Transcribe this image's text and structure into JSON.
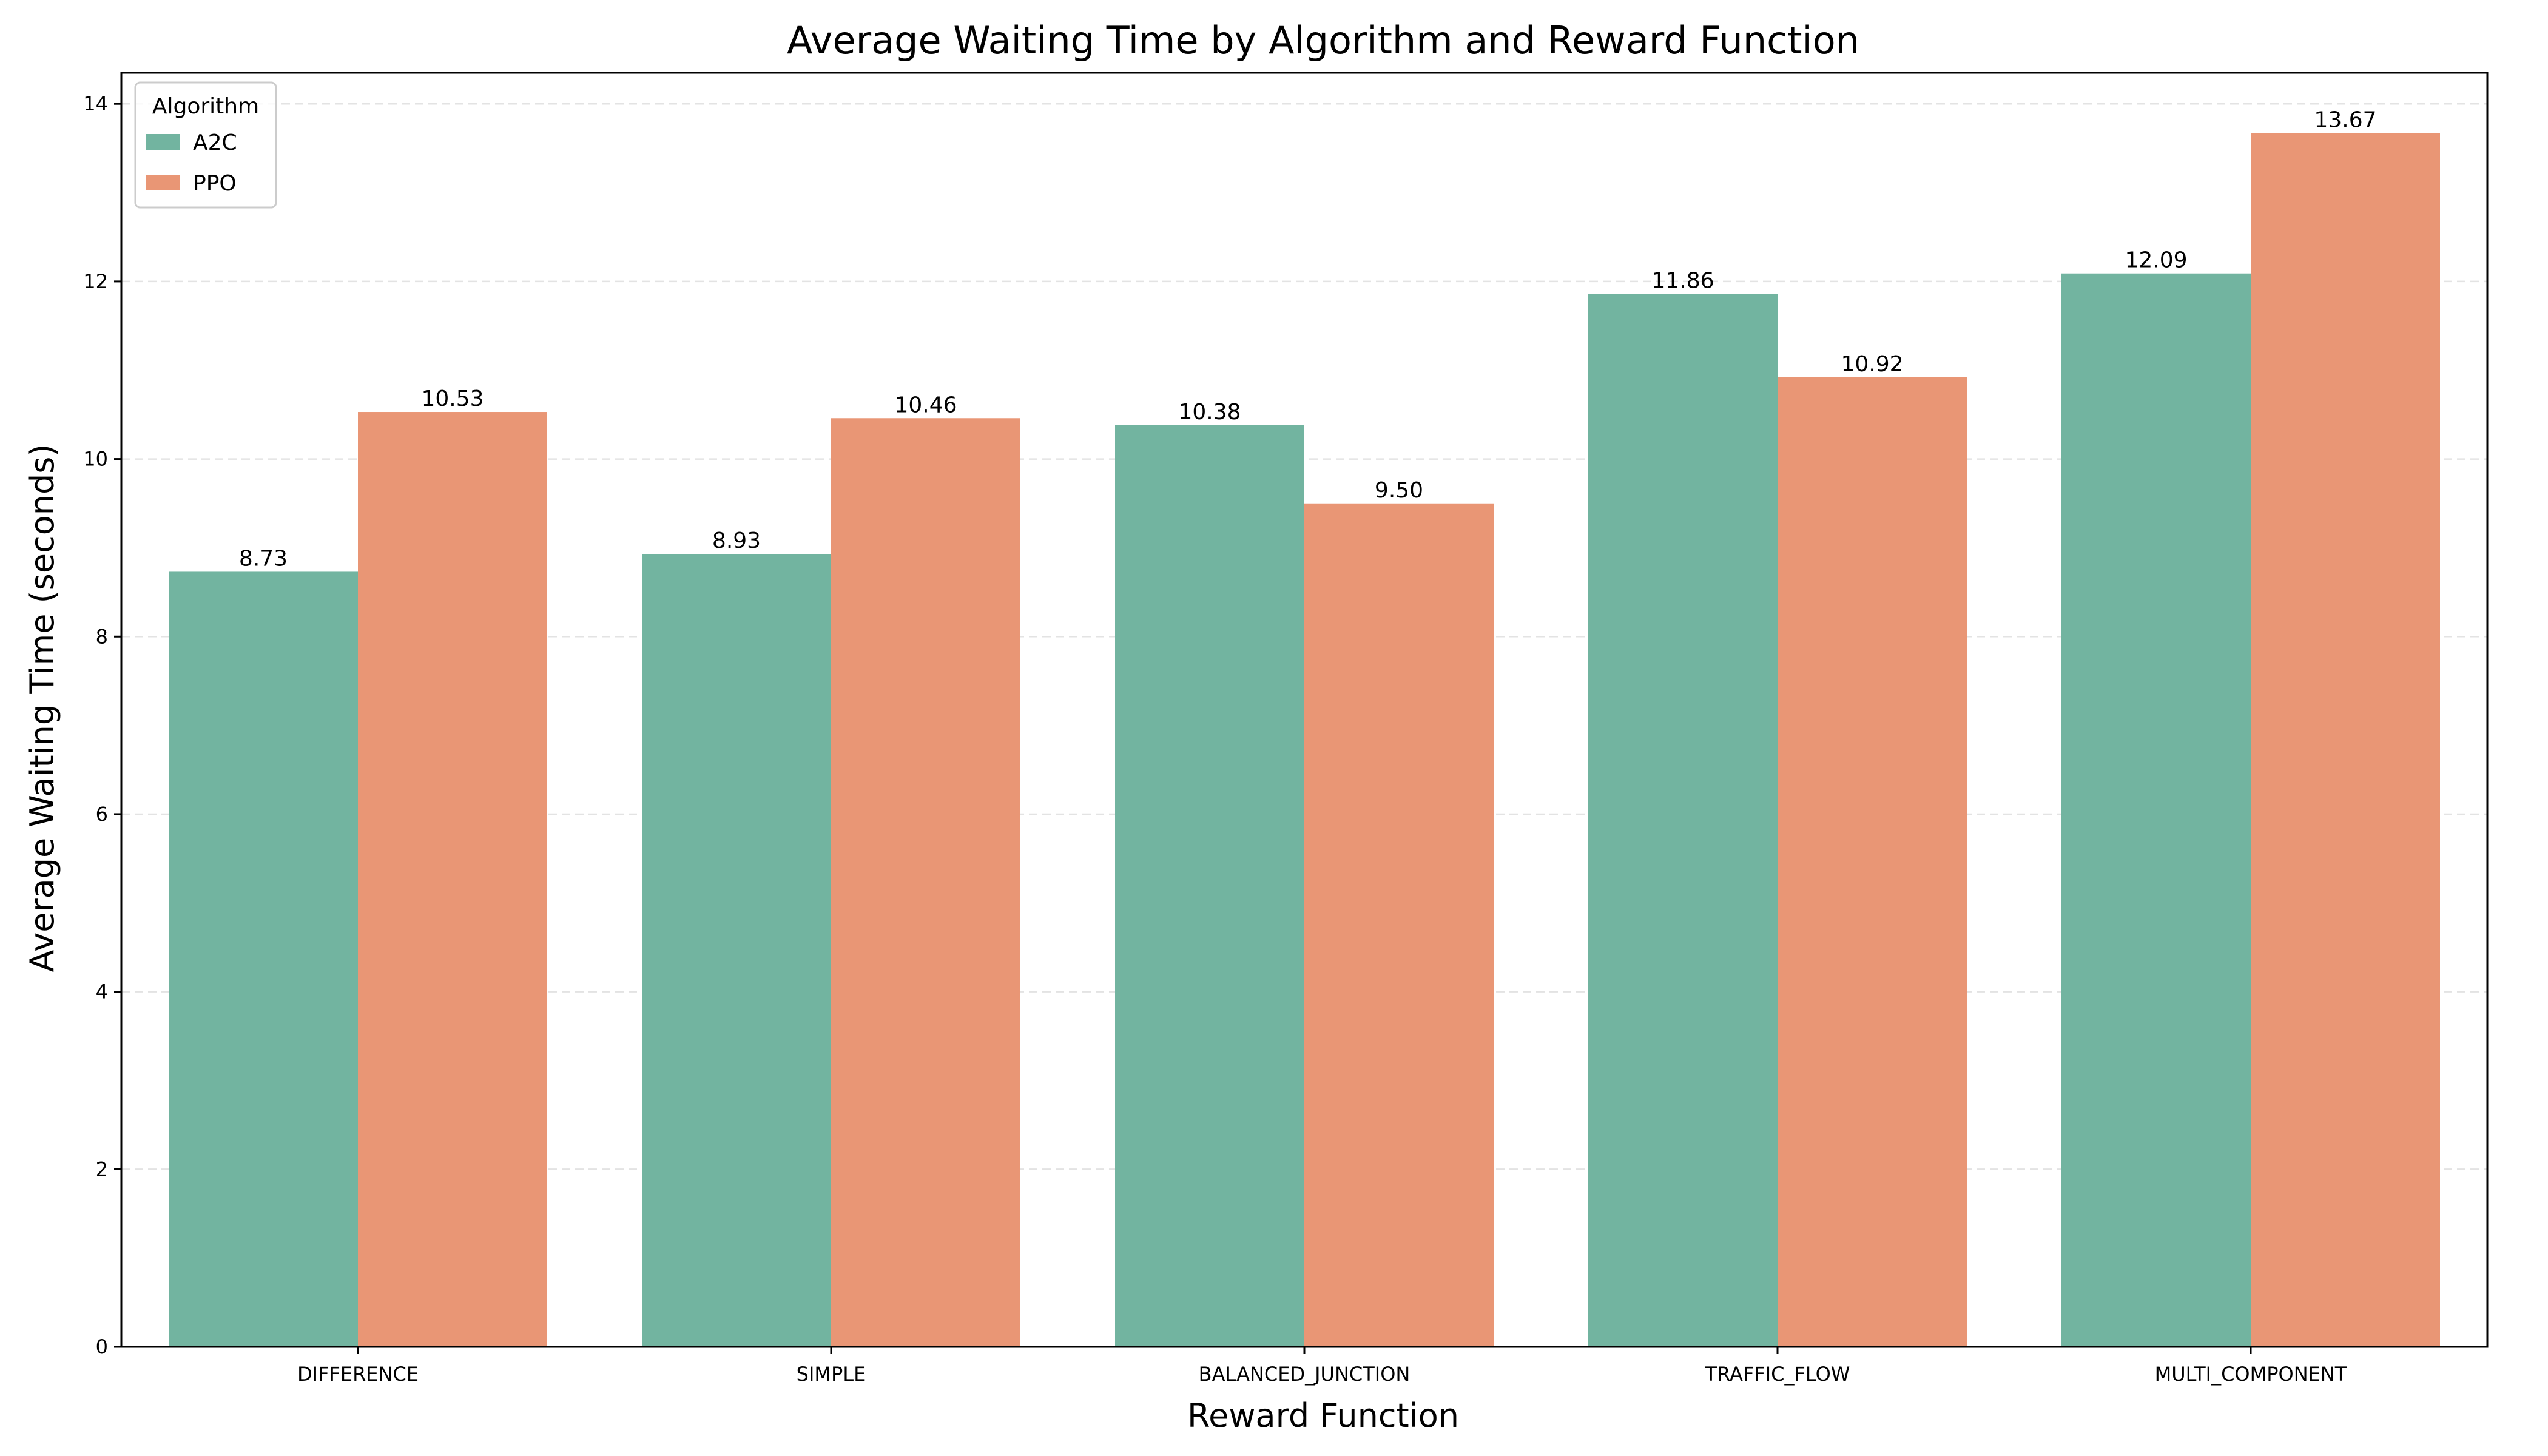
{
  "chart_data": {
    "type": "bar",
    "title": "Average Waiting Time by Algorithm and Reward Function",
    "xlabel": "Reward Function",
    "ylabel": "Average Waiting Time (seconds)",
    "categories": [
      "DIFFERENCE",
      "SIMPLE",
      "BALANCED_JUNCTION",
      "TRAFFIC_FLOW",
      "MULTI_COMPONENT"
    ],
    "series": [
      {
        "name": "A2C",
        "color": "#72b4a0",
        "values": [
          8.73,
          8.93,
          10.38,
          11.86,
          12.09
        ],
        "value_labels": [
          "8.73",
          "8.93",
          "10.38",
          "11.86",
          "12.09"
        ]
      },
      {
        "name": "PPO",
        "color": "#e99675",
        "values": [
          10.53,
          10.46,
          9.5,
          10.92,
          13.67
        ],
        "value_labels": [
          "10.53",
          "10.46",
          "9.50",
          "10.92",
          "13.67"
        ]
      }
    ],
    "ylim": [
      0,
      14.35
    ],
    "yticks": [
      0,
      2,
      4,
      6,
      8,
      10,
      12,
      14
    ],
    "grid": "y-dashed",
    "legend": {
      "title": "Algorithm",
      "placement": "top-left"
    }
  }
}
